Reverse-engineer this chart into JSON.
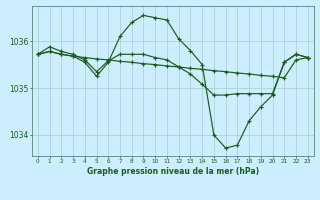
{
  "title": "Graphe pression niveau de la mer (hPa)",
  "bg_color": "#cceeff",
  "grid_color": "#aacccc",
  "line_color": "#1a5c1a",
  "marker_color": "#1a5c1a",
  "xlim": [
    -0.5,
    23.5
  ],
  "ylim": [
    1033.55,
    1036.75
  ],
  "yticks": [
    1034,
    1035,
    1036
  ],
  "xticks": [
    0,
    1,
    2,
    3,
    4,
    5,
    6,
    7,
    8,
    9,
    10,
    11,
    12,
    13,
    14,
    15,
    16,
    17,
    18,
    19,
    20,
    21,
    22,
    23
  ],
  "series": [
    {
      "x": [
        0,
        1,
        2,
        3,
        4,
        5,
        6,
        7,
        8,
        9,
        10,
        11,
        12,
        13,
        14,
        15,
        16,
        17,
        18,
        19,
        20,
        21,
        22,
        23
      ],
      "y": [
        1035.72,
        1035.78,
        1035.72,
        1035.68,
        1035.65,
        1035.62,
        1035.6,
        1035.57,
        1035.55,
        1035.52,
        1035.5,
        1035.47,
        1035.45,
        1035.42,
        1035.4,
        1035.37,
        1035.35,
        1035.32,
        1035.3,
        1035.27,
        1035.25,
        1035.22,
        1035.6,
        1035.65
      ]
    },
    {
      "x": [
        0,
        1,
        2,
        3,
        4,
        5,
        6,
        7,
        8,
        9,
        10,
        11,
        12,
        13,
        14,
        15,
        16,
        17,
        18,
        19,
        20,
        21,
        22,
        23
      ],
      "y": [
        1035.72,
        1035.78,
        1035.72,
        1035.68,
        1035.55,
        1035.25,
        1035.55,
        1036.1,
        1036.4,
        1036.55,
        1036.5,
        1036.45,
        1036.05,
        1035.8,
        1035.5,
        1034.0,
        1033.72,
        1033.78,
        1034.3,
        1034.6,
        1034.85,
        1035.55,
        1035.72,
        1035.65
      ]
    },
    {
      "x": [
        0,
        1,
        2,
        3,
        4,
        5,
        6,
        7,
        8,
        9,
        10,
        11,
        12,
        13,
        14,
        15,
        16,
        17,
        18,
        19,
        20,
        21,
        22,
        23
      ],
      "y": [
        1035.72,
        1035.88,
        1035.78,
        1035.72,
        1035.6,
        1035.35,
        1035.58,
        1035.72,
        1035.72,
        1035.72,
        1035.65,
        1035.6,
        1035.45,
        1035.3,
        1035.08,
        1034.85,
        1034.85,
        1034.88,
        1034.88,
        1034.88,
        1034.88,
        1035.55,
        1035.72,
        1035.65
      ]
    }
  ]
}
